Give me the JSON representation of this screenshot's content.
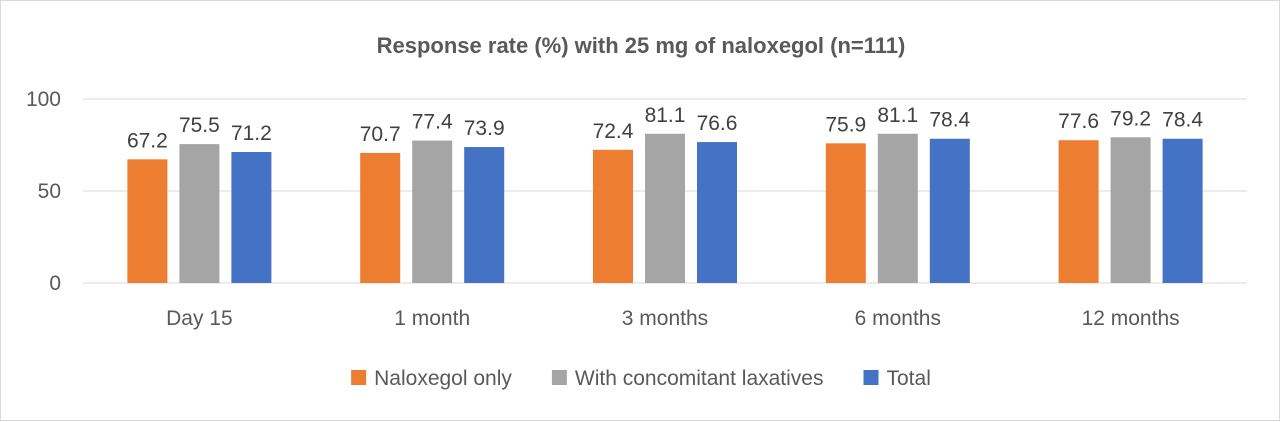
{
  "chart_data": {
    "type": "bar",
    "title": "Response rate (%) with 25 mg of naloxegol (n=111)",
    "categories": [
      "Day 15",
      "1 month",
      "3 months",
      "6 months",
      "12 months"
    ],
    "series": [
      {
        "name": "Naloxegol only",
        "color": "#ED7D31",
        "values": [
          67.2,
          70.7,
          72.4,
          75.9,
          77.6
        ]
      },
      {
        "name": "With concomitant laxatives",
        "color": "#A5A5A5",
        "values": [
          75.5,
          77.4,
          81.1,
          81.1,
          79.2
        ]
      },
      {
        "name": "Total",
        "color": "#4472C4",
        "values": [
          71.2,
          73.9,
          76.6,
          78.4,
          78.4
        ]
      }
    ],
    "yticks": [
      0,
      50,
      100
    ],
    "ylim": [
      0,
      100
    ],
    "xlabel": "",
    "ylabel": "",
    "grid": true,
    "legend": "bottom",
    "data_labels": true
  }
}
